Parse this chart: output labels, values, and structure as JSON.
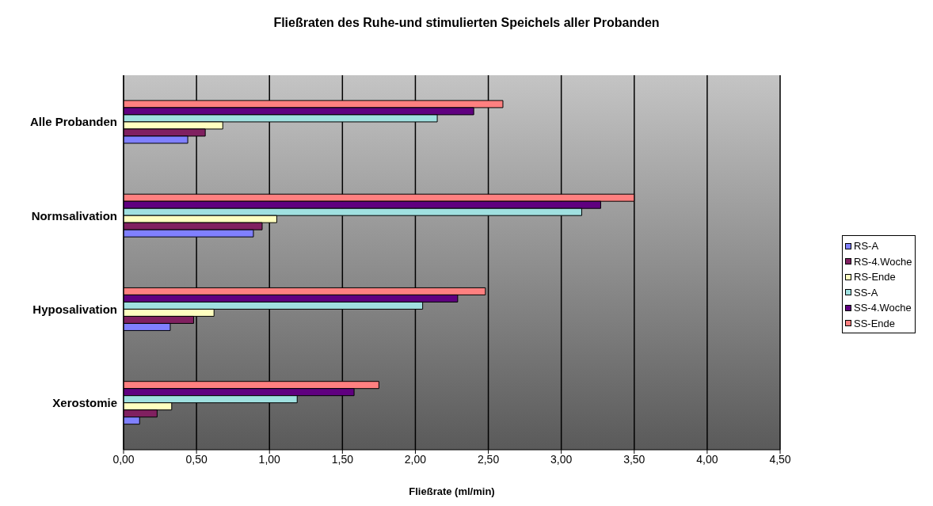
{
  "chart_data": {
    "type": "bar",
    "orientation": "horizontal",
    "title": "Fließraten des Ruhe-und stimulierten Speichels aller Probanden",
    "xlabel": "Fließrate (ml/min)",
    "categories": [
      "Alle Probanden",
      "Normsalivation",
      "Hyposalivation",
      "Xerostomie"
    ],
    "series": [
      {
        "name": "RS-A",
        "color": "#8080ff",
        "values": [
          0.44,
          0.89,
          0.32,
          0.11
        ]
      },
      {
        "name": "RS-4.Woche",
        "color": "#802060",
        "values": [
          0.56,
          0.95,
          0.48,
          0.23
        ]
      },
      {
        "name": "RS-Ende",
        "color": "#ffffc0",
        "values": [
          0.68,
          1.05,
          0.62,
          0.33
        ]
      },
      {
        "name": "SS-A",
        "color": "#a0e0e0",
        "values": [
          2.15,
          3.14,
          2.05,
          1.19
        ]
      },
      {
        "name": "SS-4.Woche",
        "color": "#600080",
        "values": [
          2.4,
          3.27,
          2.29,
          1.58
        ]
      },
      {
        "name": "SS-Ende",
        "color": "#ff8080",
        "values": [
          2.6,
          3.5,
          2.48,
          1.75
        ]
      }
    ],
    "xlim": [
      0,
      4.5
    ],
    "xticks": [
      {
        "value": 0,
        "label": "0,00"
      },
      {
        "value": 0.5,
        "label": "0,50"
      },
      {
        "value": 1,
        "label": "1,00"
      },
      {
        "value": 1.5,
        "label": "1,50"
      },
      {
        "value": 2,
        "label": "2,00"
      },
      {
        "value": 2.5,
        "label": "2,50"
      },
      {
        "value": 3,
        "label": "3,00"
      },
      {
        "value": 3.5,
        "label": "3,50"
      },
      {
        "value": 4,
        "label": "4,00"
      },
      {
        "value": 4.5,
        "label": "4,50"
      }
    ],
    "grid": "x",
    "legend": "right"
  }
}
